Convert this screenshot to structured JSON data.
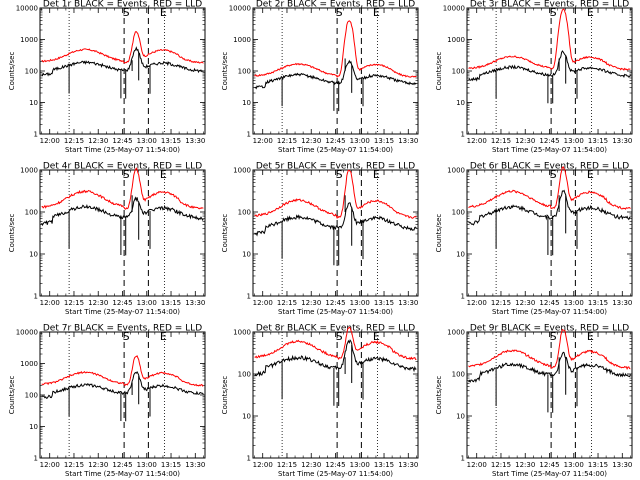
{
  "figure": {
    "colors": {
      "events": "#000000",
      "lld": "#ff0000",
      "axes": "#000000",
      "background": "#ffffff"
    }
  },
  "chart_data": [
    {
      "type": "line",
      "title": "Det 1r BLACK = Events, RED = LLD",
      "xlabel": "Start Time (25-May-07 11:54:00)",
      "ylabel": "Counts/sec",
      "yscale": "log",
      "ylim": [
        1,
        10000
      ],
      "y_ticks": [
        "1",
        "10",
        "100",
        "1000",
        "10000"
      ],
      "x_tick_labels": [
        "12:00",
        "12:15",
        "12:30",
        "12:45",
        "13:00",
        "13:15",
        "13:30"
      ],
      "x_tick_minutes": [
        0,
        15,
        30,
        45,
        60,
        75,
        90
      ],
      "xlim_minutes": [
        -6,
        96
      ],
      "markers": {
        "start_label": "S",
        "end_label": "E",
        "start_minute": 46,
        "end_minute": 61
      },
      "dotted_lines_minutes": [
        12,
        71
      ],
      "series": [
        {
          "name": "BLACK = Events",
          "color": "#000000",
          "baseline": 100,
          "peak": 500,
          "sep_base": 100,
          "sep_peak": 220
        },
        {
          "name": "RED = LLD",
          "color": "#ff0000",
          "baseline": 200,
          "peak": 1500
        }
      ]
    },
    {
      "type": "line",
      "title": "Det 2r BLACK = Events, RED = LLD",
      "xlabel": "Start Time (25-May-07 11:54:00)",
      "ylabel": "Counts/sec",
      "yscale": "log",
      "ylim": [
        1,
        10000
      ],
      "y_ticks": [
        "1",
        "10",
        "100",
        "1000",
        "10000"
      ],
      "x_tick_labels": [
        "12:00",
        "12:15",
        "12:30",
        "12:45",
        "13:00",
        "13:15",
        "13:30"
      ],
      "x_tick_minutes": [
        0,
        15,
        30,
        45,
        60,
        75,
        90
      ],
      "xlim_minutes": [
        -6,
        96
      ],
      "markers": {
        "start_label": "S",
        "end_label": "E",
        "start_minute": 46,
        "end_minute": 61
      },
      "dotted_lines_minutes": [
        12,
        71
      ],
      "series": [
        {
          "name": "BLACK = Events",
          "color": "#000000",
          "baseline": 40,
          "peak": 200,
          "sep_base": 100,
          "sep_peak": 250
        },
        {
          "name": "RED = LLD",
          "color": "#ff0000",
          "baseline": 70,
          "peak": 4000
        }
      ]
    },
    {
      "type": "line",
      "title": "Det 3r BLACK = Events, RED = LLD",
      "xlabel": "Start Time (25-May-07 11:54:00)",
      "ylabel": "Counts/sec",
      "yscale": "log",
      "ylim": [
        1,
        10000
      ],
      "y_ticks": [
        "1",
        "10",
        "100",
        "1000",
        "10000"
      ],
      "x_tick_labels": [
        "12:00",
        "12:15",
        "12:30",
        "12:45",
        "13:00",
        "13:15",
        "13:30"
      ],
      "x_tick_minutes": [
        0,
        15,
        30,
        45,
        60,
        75,
        90
      ],
      "xlim_minutes": [
        -6,
        96
      ],
      "markers": {
        "start_label": "S",
        "end_label": "E",
        "start_minute": 46,
        "end_minute": 61
      },
      "dotted_lines_minutes": [
        12,
        71
      ],
      "series": [
        {
          "name": "BLACK = Events",
          "color": "#000000",
          "baseline": 70,
          "peak": 400,
          "sep_base": 100,
          "sep_peak": 250
        },
        {
          "name": "RED = LLD",
          "color": "#ff0000",
          "baseline": 120,
          "peak": 9000
        }
      ]
    },
    {
      "type": "line",
      "title": "Det 4r BLACK = Events, RED = LLD",
      "xlabel": "Start Time (25-May-07 11:54:00)",
      "ylabel": "Counts/sec",
      "yscale": "log",
      "ylim": [
        1,
        1000
      ],
      "y_ticks": [
        "1",
        "10",
        "100",
        "1000"
      ],
      "x_tick_labels": [
        "12:00",
        "12:15",
        "12:30",
        "12:45",
        "13:00",
        "13:15",
        "13:30"
      ],
      "x_tick_minutes": [
        0,
        15,
        30,
        45,
        60,
        75,
        90
      ],
      "xlim_minutes": [
        -6,
        96
      ],
      "markers": {
        "start_label": "S",
        "end_label": "E",
        "start_minute": 46,
        "end_minute": 61
      },
      "dotted_lines_minutes": [
        12,
        71
      ],
      "series": [
        {
          "name": "BLACK = Events",
          "color": "#000000",
          "baseline": 70,
          "peak": 200,
          "sep_base": 100,
          "sep_peak": 250
        },
        {
          "name": "RED = LLD",
          "color": "#ff0000",
          "baseline": 130,
          "peak": 900
        }
      ]
    },
    {
      "type": "line",
      "title": "Det 5r BLACK = Events, RED = LLD",
      "xlabel": "Start Time (25-May-07 11:54:00)",
      "ylabel": "Counts/sec",
      "yscale": "log",
      "ylim": [
        1,
        1000
      ],
      "y_ticks": [
        "1",
        "10",
        "100",
        "1000"
      ],
      "x_tick_labels": [
        "12:00",
        "12:15",
        "12:30",
        "12:45",
        "13:00",
        "13:15",
        "13:30"
      ],
      "x_tick_minutes": [
        0,
        15,
        30,
        45,
        60,
        75,
        90
      ],
      "xlim_minutes": [
        -6,
        96
      ],
      "markers": {
        "start_label": "S",
        "end_label": "E",
        "start_minute": 46,
        "end_minute": 61
      },
      "dotted_lines_minutes": [
        12,
        71
      ],
      "series": [
        {
          "name": "BLACK = Events",
          "color": "#000000",
          "baseline": 40,
          "peak": 150,
          "sep_base": 100,
          "sep_peak": 250
        },
        {
          "name": "RED = LLD",
          "color": "#ff0000",
          "baseline": 80,
          "peak": 900
        }
      ]
    },
    {
      "type": "line",
      "title": "Det 6r BLACK = Events, RED = LLD",
      "xlabel": "Start Time (25-May-07 11:54:00)",
      "ylabel": "Counts/sec",
      "yscale": "log",
      "ylim": [
        1,
        1000
      ],
      "y_ticks": [
        "1",
        "10",
        "100",
        "1000"
      ],
      "x_tick_labels": [
        "12:00",
        "12:15",
        "12:30",
        "12:45",
        "13:00",
        "13:15",
        "13:30"
      ],
      "x_tick_minutes": [
        0,
        15,
        30,
        45,
        60,
        75,
        90
      ],
      "xlim_minutes": [
        -6,
        96
      ],
      "markers": {
        "start_label": "S",
        "end_label": "E",
        "start_minute": 46,
        "end_minute": 61
      },
      "dotted_lines_minutes": [
        12,
        71
      ],
      "series": [
        {
          "name": "BLACK = Events",
          "color": "#000000",
          "baseline": 70,
          "peak": 300,
          "sep_base": 100,
          "sep_peak": 250
        },
        {
          "name": "RED = LLD",
          "color": "#ff0000",
          "baseline": 130,
          "peak": 1000
        }
      ]
    },
    {
      "type": "line",
      "title": "Det 7r BLACK = Events, RED = LLD",
      "xlabel": "Start Time (25-May-07 11:54:00)",
      "ylabel": "Counts/sec",
      "yscale": "log",
      "ylim": [
        1,
        10000
      ],
      "y_ticks": [
        "1",
        "10",
        "100",
        "1000",
        "10000"
      ],
      "x_tick_labels": [
        "12:00",
        "12:15",
        "12:30",
        "12:45",
        "13:00",
        "13:15",
        "13:30"
      ],
      "x_tick_minutes": [
        0,
        15,
        30,
        45,
        60,
        75,
        90
      ],
      "xlim_minutes": [
        -6,
        96
      ],
      "markers": {
        "start_label": "S",
        "end_label": "E",
        "start_minute": 46,
        "end_minute": 61
      },
      "dotted_lines_minutes": [
        12,
        71
      ],
      "series": [
        {
          "name": "BLACK = Events",
          "color": "#000000",
          "baseline": 110,
          "peak": 500,
          "sep_base": 100,
          "sep_peak": 250
        },
        {
          "name": "RED = LLD",
          "color": "#ff0000",
          "baseline": 220,
          "peak": 1500
        }
      ]
    },
    {
      "type": "line",
      "title": "Det 8r BLACK = Events, RED = LLD",
      "xlabel": "Start Time (25-May-07 11:54:00)",
      "ylabel": "Counts/sec",
      "yscale": "log",
      "ylim": [
        1,
        1000
      ],
      "y_ticks": [
        "1",
        "10",
        "100",
        "1000"
      ],
      "x_tick_labels": [
        "12:00",
        "12:15",
        "12:30",
        "12:45",
        "13:00",
        "13:15",
        "13:30"
      ],
      "x_tick_minutes": [
        0,
        15,
        30,
        45,
        60,
        75,
        90
      ],
      "xlim_minutes": [
        -6,
        96
      ],
      "markers": {
        "start_label": "S",
        "end_label": "E",
        "start_minute": 46,
        "end_minute": 61
      },
      "dotted_lines_minutes": [
        12,
        71
      ],
      "series": [
        {
          "name": "BLACK = Events",
          "color": "#000000",
          "baseline": 130,
          "peak": 600,
          "sep_base": 100,
          "sep_peak": 250
        },
        {
          "name": "RED = LLD",
          "color": "#ff0000",
          "baseline": 250,
          "peak": 1000
        }
      ]
    },
    {
      "type": "line",
      "title": "Det 9r BLACK = Events, RED = LLD",
      "xlabel": "Start Time (25-May-07 11:54:00)",
      "ylabel": "Counts/sec",
      "yscale": "log",
      "ylim": [
        1,
        1000
      ],
      "y_ticks": [
        "1",
        "10",
        "100",
        "1000"
      ],
      "x_tick_labels": [
        "12:00",
        "12:15",
        "12:30",
        "12:45",
        "13:00",
        "13:15",
        "13:30"
      ],
      "x_tick_minutes": [
        0,
        15,
        30,
        45,
        60,
        75,
        90
      ],
      "xlim_minutes": [
        -6,
        96
      ],
      "markers": {
        "start_label": "S",
        "end_label": "E",
        "start_minute": 46,
        "end_minute": 61
      },
      "dotted_lines_minutes": [
        12,
        71
      ],
      "series": [
        {
          "name": "BLACK = Events",
          "color": "#000000",
          "baseline": 90,
          "peak": 300,
          "sep_base": 100,
          "sep_peak": 250
        },
        {
          "name": "RED = LLD",
          "color": "#ff0000",
          "baseline": 150,
          "peak": 1000
        }
      ]
    }
  ]
}
